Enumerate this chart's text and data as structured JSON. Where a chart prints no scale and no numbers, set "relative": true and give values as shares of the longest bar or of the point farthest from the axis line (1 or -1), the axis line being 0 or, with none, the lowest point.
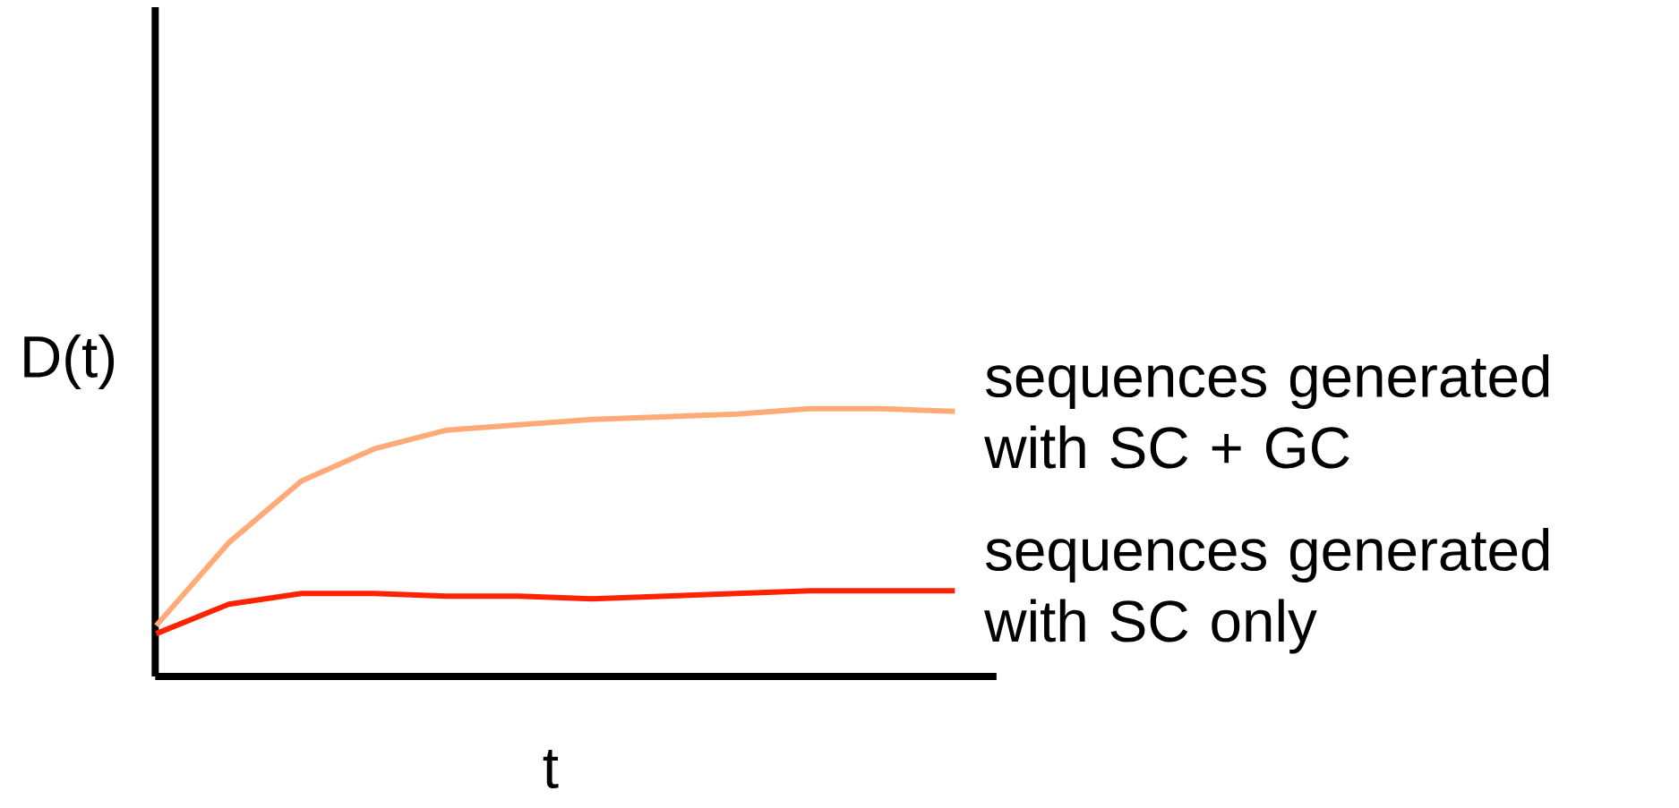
{
  "chart_data": {
    "type": "line",
    "relative": true,
    "xlabel": "t",
    "ylabel": "D(t)",
    "categories": [
      null,
      null,
      null,
      null,
      null,
      null,
      null,
      null,
      null,
      null,
      null,
      null
    ],
    "series": [
      {
        "name": "sequences generated with SC + GC",
        "color": "#ffaa77",
        "values": [
          0.19,
          0.5,
          0.73,
          0.85,
          0.92,
          0.94,
          0.96,
          0.97,
          0.98,
          1,
          1,
          0.99
        ]
      },
      {
        "name": "sequences generated with SC only",
        "color": "#ff2200",
        "values": [
          0.16,
          0.27,
          0.31,
          0.31,
          0.3,
          0.3,
          0.29,
          0.3,
          0.31,
          0.32,
          0.32,
          0.32
        ]
      }
    ]
  }
}
